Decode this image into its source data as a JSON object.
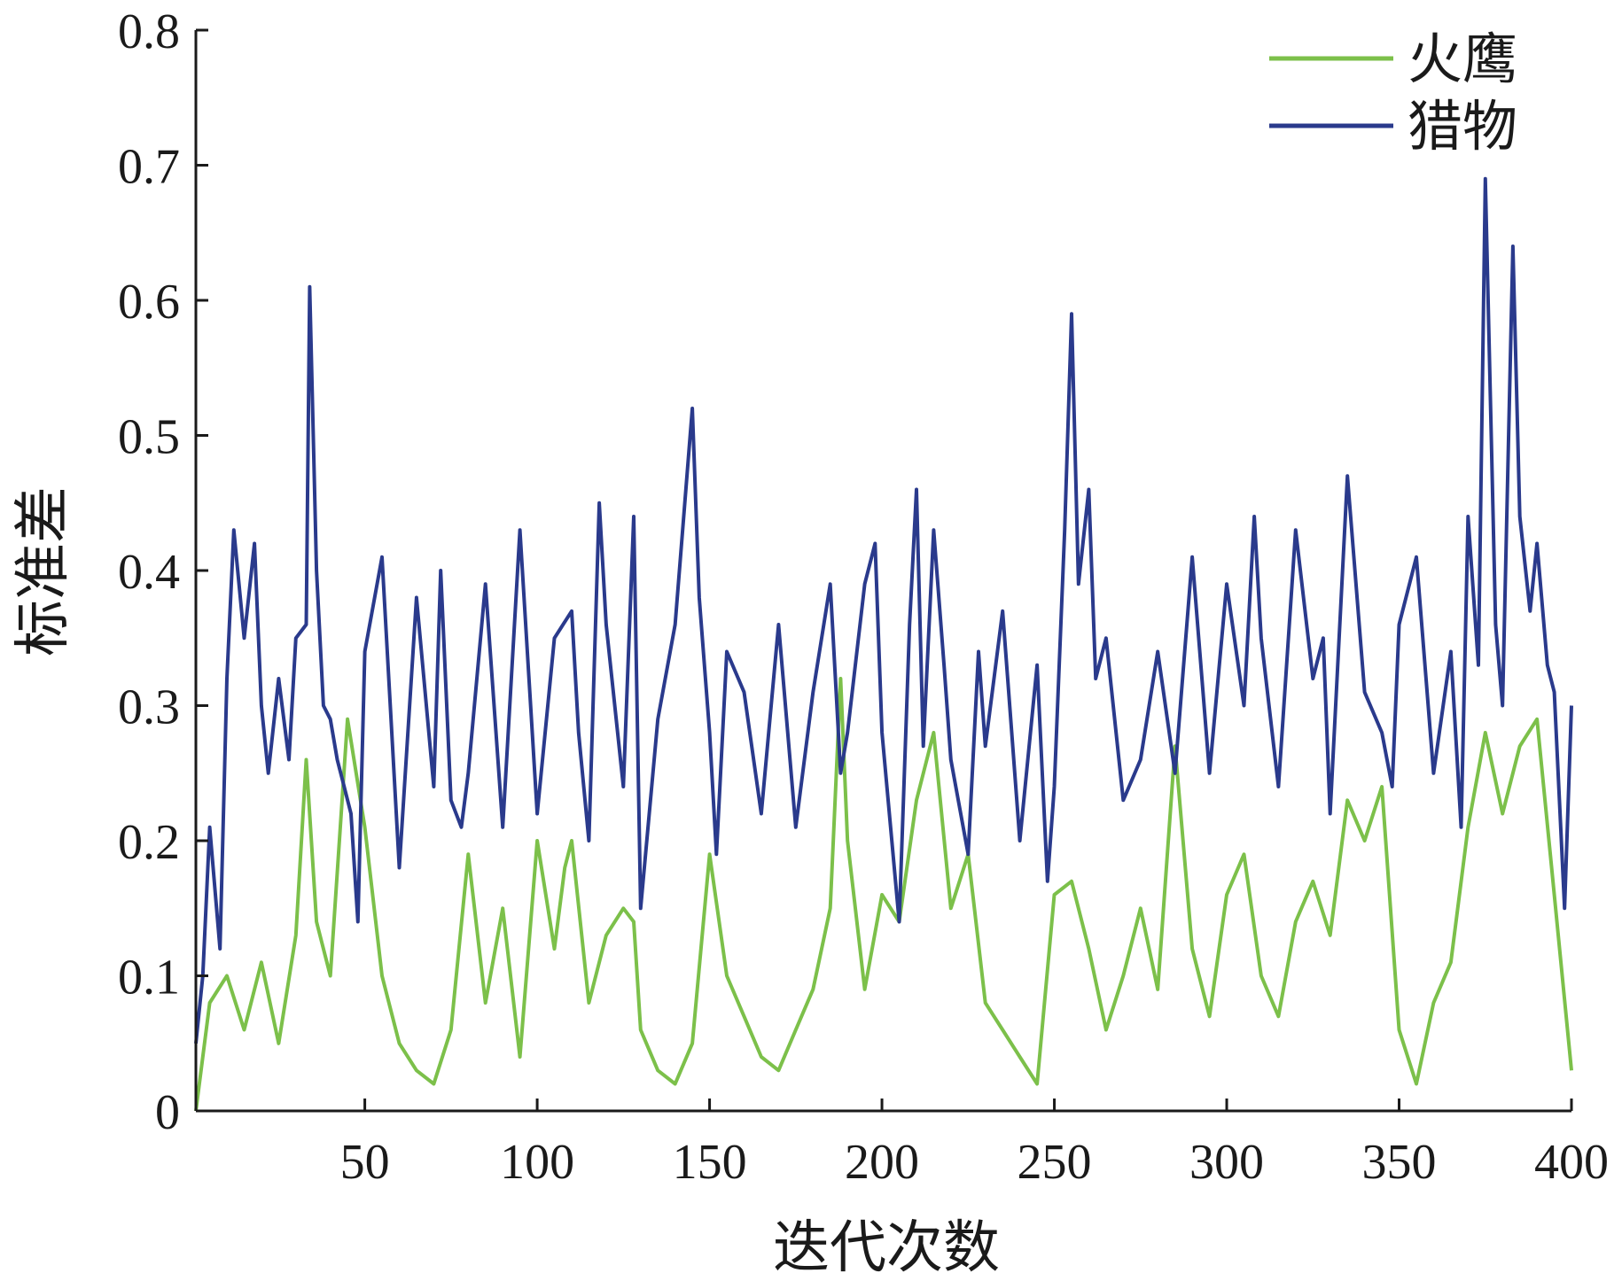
{
  "chart_data": {
    "type": "line",
    "title": "",
    "xlabel": "迭代次数",
    "ylabel": "标准差",
    "xlim": [
      1,
      400
    ],
    "ylim": [
      0,
      0.8
    ],
    "xticks": [
      50,
      100,
      150,
      200,
      250,
      300,
      350,
      400
    ],
    "xtick_labels": [
      "50",
      "100",
      "150",
      "200",
      "250",
      "300",
      "350",
      "400"
    ],
    "yticks": [
      0,
      0.1,
      0.2,
      0.3,
      0.4,
      0.5,
      0.6,
      0.7,
      0.8
    ],
    "ytick_labels": [
      "0",
      "0.1",
      "0.2",
      "0.3",
      "0.4",
      "0.5",
      "0.6",
      "0.7",
      "0.8"
    ],
    "grid": false,
    "legend_position": "top-right",
    "series": [
      {
        "name": "火鹰",
        "color": "#7cc04a",
        "x": [
          1,
          5,
          10,
          15,
          20,
          25,
          30,
          33,
          36,
          40,
          45,
          50,
          55,
          60,
          65,
          70,
          75,
          80,
          85,
          90,
          95,
          100,
          105,
          108,
          110,
          115,
          120,
          125,
          128,
          130,
          135,
          140,
          145,
          150,
          155,
          160,
          165,
          170,
          175,
          180,
          185,
          188,
          190,
          195,
          200,
          205,
          210,
          215,
          220,
          225,
          230,
          235,
          240,
          245,
          250,
          255,
          260,
          265,
          270,
          275,
          280,
          285,
          290,
          295,
          300,
          305,
          310,
          315,
          320,
          325,
          330,
          335,
          340,
          345,
          350,
          355,
          360,
          365,
          370,
          375,
          380,
          385,
          390,
          395,
          400
        ],
        "y": [
          0.0,
          0.08,
          0.1,
          0.06,
          0.11,
          0.05,
          0.13,
          0.26,
          0.14,
          0.1,
          0.29,
          0.21,
          0.1,
          0.05,
          0.03,
          0.02,
          0.06,
          0.19,
          0.08,
          0.15,
          0.04,
          0.2,
          0.12,
          0.18,
          0.2,
          0.08,
          0.13,
          0.15,
          0.14,
          0.06,
          0.03,
          0.02,
          0.05,
          0.19,
          0.1,
          0.07,
          0.04,
          0.03,
          0.06,
          0.09,
          0.15,
          0.32,
          0.2,
          0.09,
          0.16,
          0.14,
          0.23,
          0.28,
          0.15,
          0.19,
          0.08,
          0.06,
          0.04,
          0.02,
          0.16,
          0.17,
          0.12,
          0.06,
          0.1,
          0.15,
          0.09,
          0.27,
          0.12,
          0.07,
          0.16,
          0.19,
          0.1,
          0.07,
          0.14,
          0.17,
          0.13,
          0.23,
          0.2,
          0.24,
          0.06,
          0.02,
          0.08,
          0.11,
          0.21,
          0.28,
          0.22,
          0.27,
          0.29,
          0.16,
          0.03
        ]
      },
      {
        "name": "猎物",
        "color": "#2a3a8c",
        "x": [
          1,
          3,
          5,
          8,
          10,
          12,
          15,
          18,
          20,
          22,
          25,
          28,
          30,
          33,
          34,
          36,
          38,
          40,
          42,
          44,
          46,
          48,
          50,
          55,
          60,
          65,
          70,
          72,
          75,
          78,
          80,
          85,
          90,
          95,
          100,
          105,
          110,
          112,
          115,
          118,
          120,
          125,
          128,
          130,
          135,
          140,
          145,
          147,
          150,
          152,
          155,
          160,
          165,
          170,
          175,
          180,
          185,
          188,
          190,
          195,
          198,
          200,
          205,
          208,
          210,
          212,
          215,
          218,
          220,
          225,
          228,
          230,
          235,
          240,
          245,
          248,
          250,
          253,
          255,
          257,
          260,
          262,
          265,
          270,
          275,
          280,
          285,
          290,
          295,
          300,
          305,
          308,
          310,
          315,
          320,
          325,
          328,
          330,
          335,
          340,
          345,
          348,
          350,
          355,
          360,
          365,
          368,
          370,
          373,
          375,
          378,
          380,
          383,
          385,
          388,
          390,
          393,
          395,
          398,
          400
        ],
        "y": [
          0.05,
          0.1,
          0.21,
          0.12,
          0.32,
          0.43,
          0.35,
          0.42,
          0.3,
          0.25,
          0.32,
          0.26,
          0.35,
          0.36,
          0.61,
          0.4,
          0.3,
          0.29,
          0.26,
          0.24,
          0.22,
          0.14,
          0.34,
          0.41,
          0.18,
          0.38,
          0.24,
          0.4,
          0.23,
          0.21,
          0.25,
          0.39,
          0.21,
          0.43,
          0.22,
          0.35,
          0.37,
          0.28,
          0.2,
          0.45,
          0.36,
          0.24,
          0.44,
          0.15,
          0.29,
          0.36,
          0.52,
          0.38,
          0.28,
          0.19,
          0.34,
          0.31,
          0.22,
          0.36,
          0.21,
          0.31,
          0.39,
          0.25,
          0.28,
          0.39,
          0.42,
          0.28,
          0.14,
          0.36,
          0.46,
          0.27,
          0.43,
          0.33,
          0.26,
          0.19,
          0.34,
          0.27,
          0.37,
          0.2,
          0.33,
          0.17,
          0.24,
          0.43,
          0.59,
          0.39,
          0.46,
          0.32,
          0.35,
          0.23,
          0.26,
          0.34,
          0.25,
          0.41,
          0.25,
          0.39,
          0.3,
          0.44,
          0.35,
          0.24,
          0.43,
          0.32,
          0.35,
          0.22,
          0.47,
          0.31,
          0.28,
          0.24,
          0.36,
          0.41,
          0.25,
          0.34,
          0.21,
          0.44,
          0.33,
          0.69,
          0.36,
          0.3,
          0.64,
          0.44,
          0.37,
          0.42,
          0.33,
          0.31,
          0.15,
          0.3
        ]
      }
    ]
  }
}
